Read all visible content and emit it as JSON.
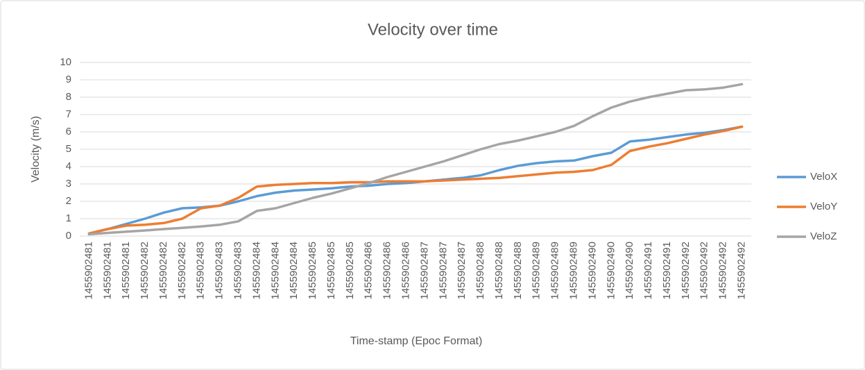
{
  "chart_data": {
    "type": "line",
    "title": "Velocity over time",
    "x_label": "Time-stamp (Epoc Format)",
    "y_label": "Velocity (m/s)",
    "categories": [
      "1455902481",
      "1455902481",
      "1455902481",
      "1455902482",
      "1455902482",
      "1455902482",
      "1455902483",
      "1455902483",
      "1455902483",
      "1455902484",
      "1455902484",
      "1455902484",
      "1455902485",
      "1455902485",
      "1455902485",
      "1455902486",
      "1455902486",
      "1455902486",
      "1455902487",
      "1455902487",
      "1455902487",
      "1455902488",
      "1455902488",
      "1455902488",
      "1455902489",
      "1455902489",
      "1455902489",
      "1455902490",
      "1455902490",
      "1455902490",
      "1455902491",
      "1455902491",
      "1455902492",
      "1455902492",
      "1455902492",
      "1455902492"
    ],
    "series": [
      {
        "name": "VeloX",
        "color": "#5b9bd5",
        "values": [
          0.15,
          0.4,
          0.7,
          1.0,
          1.35,
          1.6,
          1.65,
          1.75,
          2.0,
          2.3,
          2.5,
          2.62,
          2.68,
          2.75,
          2.85,
          2.9,
          3.0,
          3.05,
          3.15,
          3.25,
          3.35,
          3.5,
          3.8,
          4.05,
          4.2,
          4.3,
          4.35,
          4.6,
          4.8,
          5.45,
          5.55,
          5.7,
          5.85,
          5.95,
          6.1,
          6.3
        ]
      },
      {
        "name": "VeloY",
        "color": "#ed7d31",
        "values": [
          0.15,
          0.4,
          0.6,
          0.65,
          0.75,
          1.0,
          1.6,
          1.75,
          2.2,
          2.85,
          2.95,
          3.0,
          3.05,
          3.05,
          3.1,
          3.1,
          3.15,
          3.15,
          3.15,
          3.2,
          3.25,
          3.3,
          3.35,
          3.45,
          3.55,
          3.65,
          3.7,
          3.8,
          4.1,
          4.9,
          5.15,
          5.35,
          5.6,
          5.85,
          6.05,
          6.3
        ]
      },
      {
        "name": "VeloZ",
        "color": "#a5a5a5",
        "values": [
          0.1,
          0.18,
          0.25,
          0.32,
          0.4,
          0.47,
          0.55,
          0.65,
          0.85,
          1.45,
          1.6,
          1.9,
          2.2,
          2.45,
          2.75,
          3.05,
          3.4,
          3.7,
          4.0,
          4.3,
          4.65,
          5.0,
          5.3,
          5.5,
          5.75,
          6.0,
          6.35,
          6.9,
          7.4,
          7.75,
          8.0,
          8.2,
          8.4,
          8.45,
          8.55,
          8.75
        ]
      }
    ],
    "ylim": [
      0,
      10
    ],
    "yticks": [
      0,
      1,
      2,
      3,
      4,
      5,
      6,
      7,
      8,
      9,
      10
    ],
    "grid": true,
    "legend": "right"
  }
}
